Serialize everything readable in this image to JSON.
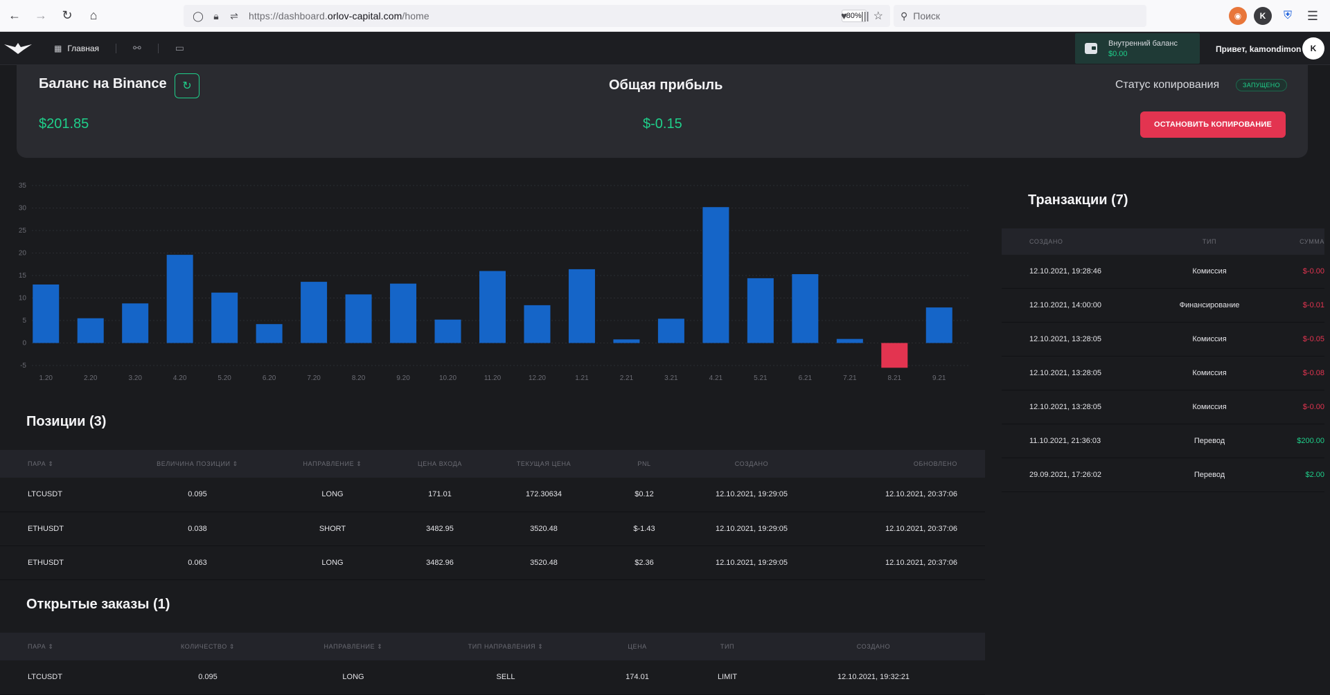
{
  "browser": {
    "url_prefix": "https://dashboard.",
    "url_domain": "orlov-capital.com",
    "url_path": "/home",
    "zoom": "80%",
    "search_placeholder": "Поиск",
    "ext_k": "K"
  },
  "header": {
    "nav_home": "Главная",
    "wallet_label": "Внутренний баланс",
    "wallet_value": "$0.00",
    "greeting": "Привет, kamondimon",
    "avatar_letter": "K"
  },
  "summary": {
    "binance_title": "Баланс на Binance",
    "binance_value": "$201.85",
    "profit_title": "Общая прибыль",
    "profit_value": "$-0.15",
    "status_title": "Статус копирования",
    "status_badge": "ЗАПУЩЕНО",
    "stop_button": "ОСТАНОВИТЬ КОПИРОВАНИЕ"
  },
  "chart_data": {
    "type": "bar",
    "categories": [
      "1.20",
      "2.20",
      "3.20",
      "4.20",
      "5.20",
      "6.20",
      "7.20",
      "8.20",
      "9.20",
      "10.20",
      "11.20",
      "12.20",
      "1.21",
      "2.21",
      "3.21",
      "4.21",
      "5.21",
      "6.21",
      "7.21",
      "8.21",
      "9.21"
    ],
    "values": [
      13,
      5.5,
      8.8,
      19.6,
      11.2,
      4.2,
      13.6,
      10.8,
      13.2,
      5.2,
      16,
      8.4,
      16.4,
      0.8,
      5.4,
      30.2,
      14.4,
      15.3,
      0.9,
      -5.5,
      7.9
    ],
    "yticks": [
      35,
      30,
      25,
      20,
      15,
      10,
      5,
      0,
      -5
    ],
    "ylim": [
      -5,
      35
    ],
    "grid": true,
    "positive_color": "#1565c8",
    "negative_color": "#e33450"
  },
  "positions": {
    "title": "Позиции (3)",
    "columns": [
      "ПАРА ⇕",
      "ВЕЛИЧИНА ПОЗИЦИИ ⇕",
      "НАПРАВЛЕНИЕ ⇕",
      "ЦЕНА ВХОДА",
      "ТЕКУЩАЯ ЦЕНА",
      "PNL",
      "СОЗДАНО",
      "ОБНОВЛЕНО"
    ],
    "rows": [
      [
        "LTCUSDT",
        "0.095",
        "LONG",
        "171.01",
        "172.30634",
        "$0.12",
        "12.10.2021, 19:29:05",
        "12.10.2021, 20:37:06"
      ],
      [
        "ETHUSDT",
        "0.038",
        "SHORT",
        "3482.95",
        "3520.48",
        "$-1.43",
        "12.10.2021, 19:29:05",
        "12.10.2021, 20:37:06"
      ],
      [
        "ETHUSDT",
        "0.063",
        "LONG",
        "3482.96",
        "3520.48",
        "$2.36",
        "12.10.2021, 19:29:05",
        "12.10.2021, 20:37:06"
      ]
    ]
  },
  "orders": {
    "title": "Открытые заказы (1)",
    "columns": [
      "ПАРА ⇕",
      "КОЛИЧЕСТВО ⇕",
      "НАПРАВЛЕНИЕ ⇕",
      "ТИП НАПРАВЛЕНИЯ ⇕",
      "ЦЕНА",
      "ТИП",
      "СОЗДАНО"
    ],
    "rows": [
      [
        "LTCUSDT",
        "0.095",
        "LONG",
        "SELL",
        "174.01",
        "LIMIT",
        "12.10.2021, 19:32:21"
      ]
    ]
  },
  "transactions": {
    "title": "Транзакции (7)",
    "columns": [
      "СОЗДАНО",
      "ТИП",
      "СУММА"
    ],
    "rows": [
      [
        "12.10.2021, 19:28:46",
        "Комиссия",
        "$-0.00"
      ],
      [
        "12.10.2021, 14:00:00",
        "Финансирование",
        "$-0.01"
      ],
      [
        "12.10.2021, 13:28:05",
        "Комиссия",
        "$-0.05"
      ],
      [
        "12.10.2021, 13:28:05",
        "Комиссия",
        "$-0.08"
      ],
      [
        "12.10.2021, 13:28:05",
        "Комиссия",
        "$-0.00"
      ],
      [
        "11.10.2021, 21:36:03",
        "Перевод",
        "$200.00"
      ],
      [
        "29.09.2021, 17:26:02",
        "Перевод",
        "$2.00"
      ]
    ]
  }
}
